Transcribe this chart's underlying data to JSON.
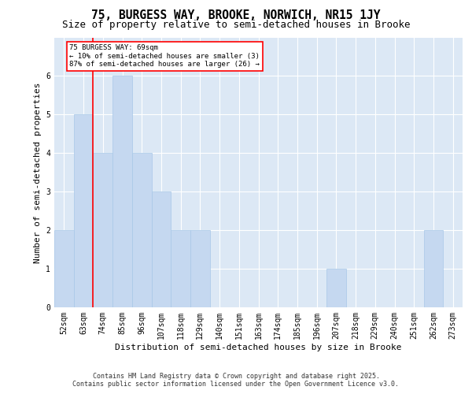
{
  "title": "75, BURGESS WAY, BROOKE, NORWICH, NR15 1JY",
  "subtitle": "Size of property relative to semi-detached houses in Brooke",
  "xlabel": "Distribution of semi-detached houses by size in Brooke",
  "ylabel": "Number of semi-detached properties",
  "categories": [
    "52sqm",
    "63sqm",
    "74sqm",
    "85sqm",
    "96sqm",
    "107sqm",
    "118sqm",
    "129sqm",
    "140sqm",
    "151sqm",
    "163sqm",
    "174sqm",
    "185sqm",
    "196sqm",
    "207sqm",
    "218sqm",
    "229sqm",
    "240sqm",
    "251sqm",
    "262sqm",
    "273sqm"
  ],
  "values": [
    2,
    5,
    4,
    6,
    4,
    3,
    2,
    2,
    0,
    0,
    0,
    0,
    0,
    0,
    1,
    0,
    0,
    0,
    0,
    2,
    0
  ],
  "bar_color": "#c5d8f0",
  "bar_edge_color": "#a8c8e8",
  "red_line_x": 1.5,
  "annotation_text": "75 BURGESS WAY: 69sqm\n← 10% of semi-detached houses are smaller (3)\n87% of semi-detached houses are larger (26) →",
  "annotation_box_color": "white",
  "annotation_box_edge_color": "red",
  "red_line_color": "red",
  "ylim": [
    0,
    7
  ],
  "yticks": [
    0,
    1,
    2,
    3,
    4,
    5,
    6
  ],
  "background_color": "#dce8f5",
  "footer_line1": "Contains HM Land Registry data © Crown copyright and database right 2025.",
  "footer_line2": "Contains public sector information licensed under the Open Government Licence v3.0.",
  "title_fontsize": 10.5,
  "subtitle_fontsize": 9,
  "xlabel_fontsize": 8,
  "ylabel_fontsize": 8,
  "tick_fontsize": 7,
  "footer_fontsize": 6
}
